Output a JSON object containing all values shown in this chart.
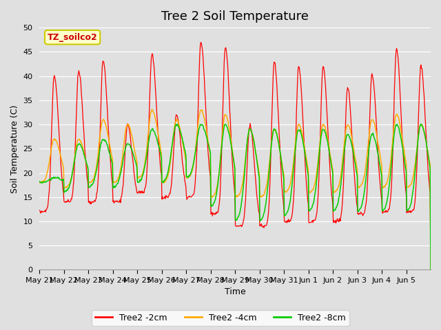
{
  "title": "Tree 2 Soil Temperature",
  "xlabel": "Time",
  "ylabel": "Soil Temperature (C)",
  "annotation": "TZ_soilco2",
  "ylim": [
    0,
    50
  ],
  "yticks": [
    0,
    5,
    10,
    15,
    20,
    25,
    30,
    35,
    40,
    45,
    50
  ],
  "x_labels": [
    "May 21",
    "May 22",
    "May 23",
    "May 24",
    "May 25",
    "May 26",
    "May 27",
    "May 28",
    "May 29",
    "May 30",
    "May 31",
    "Jun 1",
    "Jun 2",
    "Jun 3",
    "Jun 4",
    "Jun 5"
  ],
  "n_days": 16,
  "legend": [
    {
      "label": "Tree2 -2cm",
      "color": "#ff0000"
    },
    {
      "label": "Tree2 -4cm",
      "color": "#ffaa00"
    },
    {
      "label": "Tree2 -8cm",
      "color": "#00cc00"
    }
  ],
  "background_color": "#e0e0e0",
  "plot_bg_color": "#e0e0e0",
  "title_fontsize": 13,
  "axis_label_fontsize": 9,
  "tick_fontsize": 8,
  "peaks_2cm": [
    40,
    41,
    43,
    30,
    44.5,
    32,
    47,
    46,
    30,
    43,
    42,
    42,
    37.5,
    40.5,
    45.5,
    42
  ],
  "mins_2cm": [
    12,
    14,
    14,
    14,
    16,
    15,
    15,
    11.5,
    9,
    9,
    10,
    10,
    10,
    11.5,
    12,
    12
  ],
  "peaks_4cm": [
    27,
    27,
    31,
    30,
    33,
    31,
    33,
    32,
    29,
    29,
    30,
    30,
    30,
    31,
    32,
    30
  ],
  "mins_4cm": [
    18,
    17,
    18,
    18,
    19,
    18,
    19,
    15,
    15,
    15,
    16,
    16,
    16,
    17,
    17,
    17
  ],
  "peaks_8cm": [
    19,
    26,
    27,
    26,
    29,
    30,
    30,
    30,
    29,
    29,
    29,
    29,
    28,
    28,
    30,
    30
  ],
  "mins_8cm": [
    18,
    16,
    17,
    17,
    18,
    18,
    19,
    13,
    10,
    10,
    11,
    12,
    12,
    12,
    12,
    12
  ]
}
